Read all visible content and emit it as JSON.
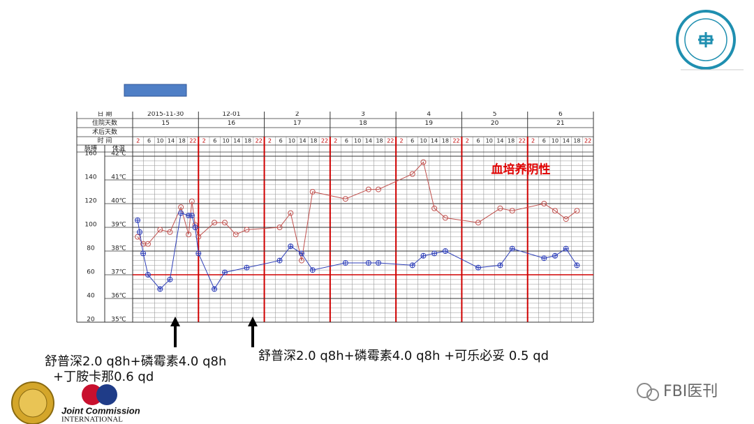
{
  "chart_data": {
    "type": "line",
    "date_label": "日 期",
    "dates": [
      "2015-11-30",
      "12-01",
      "2",
      "3",
      "4",
      "5",
      "6"
    ],
    "stay_label": "住院天数",
    "stay_days": [
      15,
      16,
      17,
      18,
      19,
      20,
      21
    ],
    "postop_label": "术后天数",
    "time_label": "时 间",
    "hours": [
      2,
      6,
      10,
      14,
      18,
      22
    ],
    "pulse_axis_label": "脉搏",
    "temp_axis_label": "体温",
    "annotation": "血培养阴性",
    "xlim": [
      0,
      42
    ],
    "ylim": [
      20,
      160
    ],
    "yticks": [
      20,
      40,
      60,
      80,
      100,
      120,
      140,
      160
    ],
    "y2lim": [
      35,
      42
    ],
    "y2ticks": [
      {
        "value": 35,
        "label": "35℃"
      },
      {
        "value": 36,
        "label": "36℃"
      },
      {
        "value": 37,
        "label": "37℃"
      },
      {
        "value": 38,
        "label": "38℃"
      },
      {
        "value": 39,
        "label": "39℃"
      },
      {
        "value": 40,
        "label": "40℃"
      },
      {
        "value": 41,
        "label": "41℃"
      },
      {
        "value": 42,
        "label": "42℃"
      }
    ],
    "reference_line": 37,
    "series": [
      {
        "color": "#c0504d",
        "axis": "y",
        "x": [
          0.45,
          0.96,
          1.4,
          2.5,
          3.4,
          4.4,
          5.1,
          5.4,
          5.7,
          6.0,
          7.45,
          8.4,
          9.4,
          10.4,
          13.4,
          14.4,
          15.4,
          16.4,
          19.4,
          21.5,
          22.4,
          25.5,
          26.5,
          27.5,
          28.5,
          31.5,
          33.5,
          34.6,
          37.5,
          38.5,
          39.5,
          40.5
        ],
        "values": [
          92,
          86,
          86,
          98,
          96,
          117,
          94,
          122,
          102,
          92,
          104,
          104,
          94,
          98,
          100,
          112,
          72,
          130,
          124,
          132,
          132,
          145,
          155,
          116,
          108,
          104,
          116,
          114,
          120,
          114,
          107,
          114
        ]
      },
      {
        "color": "#2e3fb8",
        "axis": "y2",
        "x": [
          0.45,
          0.64,
          0.96,
          1.4,
          2.5,
          3.4,
          4.4,
          5.1,
          5.4,
          5.7,
          6.0,
          7.45,
          8.4,
          10.4,
          13.4,
          14.4,
          15.4,
          16.4,
          19.4,
          21.5,
          22.4,
          25.5,
          26.5,
          27.5,
          28.5,
          31.5,
          33.5,
          34.6,
          37.5,
          38.5,
          39.5,
          40.5
        ],
        "values": [
          39.3,
          38.8,
          37.9,
          37.0,
          36.4,
          36.8,
          39.6,
          39.5,
          39.5,
          39.0,
          37.9,
          36.4,
          37.1,
          37.3,
          37.6,
          38.2,
          37.9,
          37.2,
          37.5,
          37.5,
          37.5,
          37.4,
          37.8,
          37.9,
          38.0,
          37.3,
          37.4,
          38.1,
          37.7,
          37.8,
          38.1,
          37.4
        ]
      }
    ]
  },
  "notes": [
    {
      "lines": [
        "舒普深2.0 q8h+磷霉素4.0 q8h",
        "+丁胺卡那0.6 qd"
      ]
    },
    {
      "lines": [
        "舒普深2.0 q8h+磷霉素4.0 q8h  +可乐必妥 0.5 qd"
      ]
    }
  ],
  "logo": {
    "lines": [
      "Joint Commission",
      "INTERNATIONAL"
    ]
  },
  "watermark": "FBI医刊"
}
